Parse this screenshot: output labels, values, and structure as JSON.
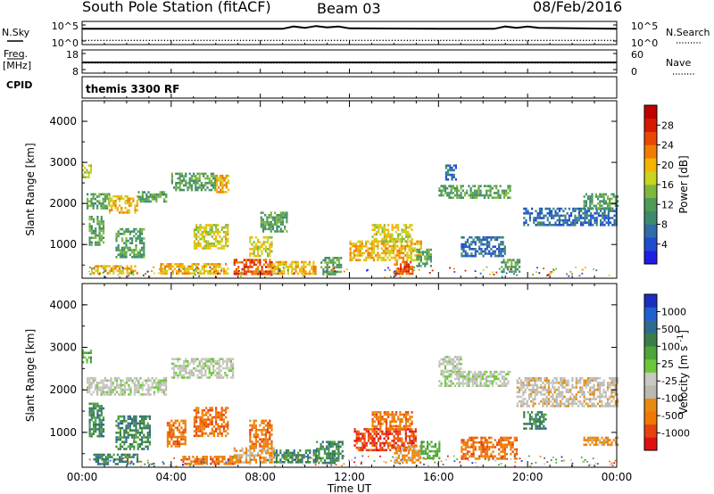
{
  "header": {
    "title": "South Pole Station (fitACF)",
    "beam": "Beam 03",
    "date": "08/Feb/2016"
  },
  "side_labels": {
    "nsky": "N.Sky",
    "freq_line1": "Freq.",
    "freq_line2": "[MHz]",
    "cpid": "CPID",
    "nsearch": "N.Search",
    "nave": "Nave",
    "cpid_value": "themis 3300 RF"
  },
  "palette": {
    "power": [
      "#1e1ee6",
      "#1f4bd2",
      "#2f6ca8",
      "#3c8a6e",
      "#4f9a58",
      "#7fb83a",
      "#c8d41e",
      "#f5b400",
      "#f07d00",
      "#e84800",
      "#d61a00",
      "#c00000"
    ],
    "velocity": [
      "#1b2fbf",
      "#1f5fcf",
      "#2f6a8f",
      "#3a7f4a",
      "#4da63a",
      "#6cc83a",
      "#c8c8c0",
      "#b9b9b0",
      "#e88a10",
      "#f07800",
      "#e84010",
      "#e01010"
    ],
    "series_line": "#000000"
  },
  "chart_data": [
    {
      "name_key": "nsky_nsearch",
      "type": "line",
      "left_ticks": [
        "10^5",
        "10^0"
      ],
      "right_ticks": [
        "10^5",
        "10^0"
      ],
      "ylim": [
        0,
        5
      ],
      "series": [
        {
          "name": "N.Sky",
          "style": "solid",
          "x": [
            0,
            9,
            9.5,
            10,
            10.5,
            11,
            11.5,
            12,
            16,
            18.5,
            19,
            19.5,
            20,
            20.5,
            24
          ],
          "y": [
            3.4,
            3.4,
            3.9,
            3.6,
            4.0,
            3.7,
            3.9,
            3.5,
            3.4,
            3.4,
            3.9,
            3.6,
            3.9,
            3.6,
            3.4
          ]
        },
        {
          "name": "N.Search",
          "style": "dotted",
          "x": [
            0,
            24
          ],
          "y": [
            0.9,
            0.9
          ]
        }
      ]
    },
    {
      "name_key": "freq_nave",
      "type": "line",
      "left_ticks": [
        "18",
        "8"
      ],
      "right_ticks": [
        "60",
        "0"
      ],
      "ylim": [
        8,
        18
      ],
      "series": [
        {
          "name": "Freq.",
          "style": "solid",
          "x": [
            0,
            24
          ],
          "y": [
            12.6,
            12.6
          ]
        },
        {
          "name": "Nave",
          "style": "dotted",
          "x": [
            0,
            24
          ],
          "y": [
            12.4,
            12.4
          ]
        }
      ]
    },
    {
      "name_key": "power",
      "type": "heatmap",
      "ylabel": "Slant Range [km]",
      "ylim": [
        180,
        4500
      ],
      "yticks": [
        1000,
        2000,
        3000,
        4000
      ],
      "xlim": [
        0,
        24
      ],
      "colorbar_label": "Power [dB]",
      "colorbar_ticks": [
        "4",
        "8",
        "12",
        "16",
        "20",
        "24",
        "28"
      ],
      "bands": [
        {
          "t": [
            0.0,
            0.4
          ],
          "r": [
            2650,
            2950
          ],
          "v": 16
        },
        {
          "t": [
            0.2,
            1.2
          ],
          "r": [
            1900,
            2250
          ],
          "v": 12
        },
        {
          "t": [
            1.2,
            2.5
          ],
          "r": [
            1800,
            2200
          ],
          "v": 20
        },
        {
          "t": [
            2.5,
            3.8
          ],
          "r": [
            2050,
            2300
          ],
          "v": 12
        },
        {
          "t": [
            4.0,
            6.0
          ],
          "r": [
            2350,
            2750
          ],
          "v": 12
        },
        {
          "t": [
            6.0,
            6.6
          ],
          "r": [
            2300,
            2700
          ],
          "v": 20
        },
        {
          "t": [
            0.3,
            1.0
          ],
          "r": [
            1000,
            1700
          ],
          "v": 12
        },
        {
          "t": [
            1.5,
            2.8
          ],
          "r": [
            700,
            1400
          ],
          "v": 12
        },
        {
          "t": [
            5.0,
            6.5
          ],
          "r": [
            900,
            1500
          ],
          "v": 16
        },
        {
          "t": [
            0.4,
            2.5
          ],
          "r": [
            300,
            500
          ],
          "v": 20
        },
        {
          "t": [
            3.5,
            6.5
          ],
          "r": [
            300,
            550
          ],
          "v": 20
        },
        {
          "t": [
            6.8,
            8.5
          ],
          "r": [
            280,
            650
          ],
          "v": 24
        },
        {
          "t": [
            8.5,
            10.5
          ],
          "r": [
            300,
            600
          ],
          "v": 20
        },
        {
          "t": [
            7.5,
            8.5
          ],
          "r": [
            700,
            1200
          ],
          "v": 16
        },
        {
          "t": [
            8.0,
            9.2
          ],
          "r": [
            1300,
            1800
          ],
          "v": 12
        },
        {
          "t": [
            10.7,
            11.6
          ],
          "r": [
            300,
            700
          ],
          "v": 12
        },
        {
          "t": [
            12.0,
            15.2
          ],
          "r": [
            600,
            1100
          ],
          "v": 20
        },
        {
          "t": [
            13.0,
            14.8
          ],
          "r": [
            1100,
            1500
          ],
          "v": 16
        },
        {
          "t": [
            14.0,
            14.8
          ],
          "r": [
            300,
            600
          ],
          "v": 24
        },
        {
          "t": [
            15.0,
            15.7
          ],
          "r": [
            500,
            900
          ],
          "v": 12
        },
        {
          "t": [
            16.0,
            19.2
          ],
          "r": [
            2150,
            2450
          ],
          "v": 12
        },
        {
          "t": [
            16.3,
            16.8
          ],
          "r": [
            2600,
            2950
          ],
          "v": 8
        },
        {
          "t": [
            17.0,
            19.0
          ],
          "r": [
            700,
            1200
          ],
          "v": 8
        },
        {
          "t": [
            19.8,
            24.0
          ],
          "r": [
            1500,
            1900
          ],
          "v": 8
        },
        {
          "t": [
            22.5,
            24.0
          ],
          "r": [
            1900,
            2250
          ],
          "v": 12
        },
        {
          "t": [
            18.8,
            19.6
          ],
          "r": [
            350,
            650
          ],
          "v": 12
        }
      ]
    },
    {
      "name_key": "velocity",
      "type": "heatmap",
      "ylabel": "Slant Range [km]",
      "xlabel": "Time UT",
      "ylim": [
        180,
        4500
      ],
      "yticks": [
        1000,
        2000,
        3000,
        4000
      ],
      "xlim": [
        0,
        24
      ],
      "xticks": [
        "00:00",
        "04:00",
        "08:00",
        "12:00",
        "16:00",
        "20:00",
        "00:00"
      ],
      "colorbar_label": "Velocity",
      "colorbar_unit_base": "[m s",
      "colorbar_unit_exp": "-1",
      "colorbar_unit_close": "]",
      "colorbar_ticks": [
        "1000",
        "500",
        "100",
        "25",
        "-25",
        "-100",
        "-500",
        "-1000"
      ],
      "bands": [
        {
          "t": [
            0.0,
            0.4
          ],
          "r": [
            2650,
            2950
          ],
          "v": 4
        },
        {
          "t": [
            0.2,
            3.8
          ],
          "r": [
            1900,
            2300
          ],
          "v": 6
        },
        {
          "t": [
            4.0,
            6.8
          ],
          "r": [
            2300,
            2750
          ],
          "v": 6
        },
        {
          "t": [
            0.3,
            1.0
          ],
          "r": [
            900,
            1700
          ],
          "v": 3
        },
        {
          "t": [
            1.5,
            3.0
          ],
          "r": [
            600,
            1400
          ],
          "v": 3
        },
        {
          "t": [
            3.8,
            4.6
          ],
          "r": [
            700,
            1300
          ],
          "v": 9
        },
        {
          "t": [
            5.0,
            6.5
          ],
          "r": [
            900,
            1600
          ],
          "v": 9
        },
        {
          "t": [
            0.5,
            2.5
          ],
          "r": [
            250,
            500
          ],
          "v": 3
        },
        {
          "t": [
            4.5,
            6.8
          ],
          "r": [
            280,
            450
          ],
          "v": 9
        },
        {
          "t": [
            6.8,
            8.6
          ],
          "r": [
            280,
            650
          ],
          "v": 8
        },
        {
          "t": [
            8.6,
            10.5
          ],
          "r": [
            280,
            600
          ],
          "v": 3
        },
        {
          "t": [
            7.5,
            8.5
          ],
          "r": [
            700,
            1300
          ],
          "v": 9
        },
        {
          "t": [
            10.5,
            11.7
          ],
          "r": [
            300,
            800
          ],
          "v": 3
        },
        {
          "t": [
            12.2,
            15.0
          ],
          "r": [
            600,
            1100
          ],
          "v": 10
        },
        {
          "t": [
            13.0,
            14.8
          ],
          "r": [
            1100,
            1500
          ],
          "v": 9
        },
        {
          "t": [
            14.0,
            15.2
          ],
          "r": [
            300,
            700
          ],
          "v": 8
        },
        {
          "t": [
            15.2,
            16.0
          ],
          "r": [
            400,
            800
          ],
          "v": 4
        },
        {
          "t": [
            16.0,
            19.2
          ],
          "r": [
            2100,
            2450
          ],
          "v": 6
        },
        {
          "t": [
            16.0,
            17.0
          ],
          "r": [
            2450,
            2800
          ],
          "v": 6
        },
        {
          "t": [
            17.0,
            19.5
          ],
          "r": [
            400,
            900
          ],
          "v": 9
        },
        {
          "t": [
            19.5,
            24.0
          ],
          "r": [
            1600,
            2300
          ],
          "v": 7
        },
        {
          "t": [
            22.5,
            24.0
          ],
          "r": [
            700,
            900
          ],
          "v": 8
        },
        {
          "t": [
            19.8,
            20.8
          ],
          "r": [
            1100,
            1500
          ],
          "v": 3
        }
      ]
    }
  ]
}
